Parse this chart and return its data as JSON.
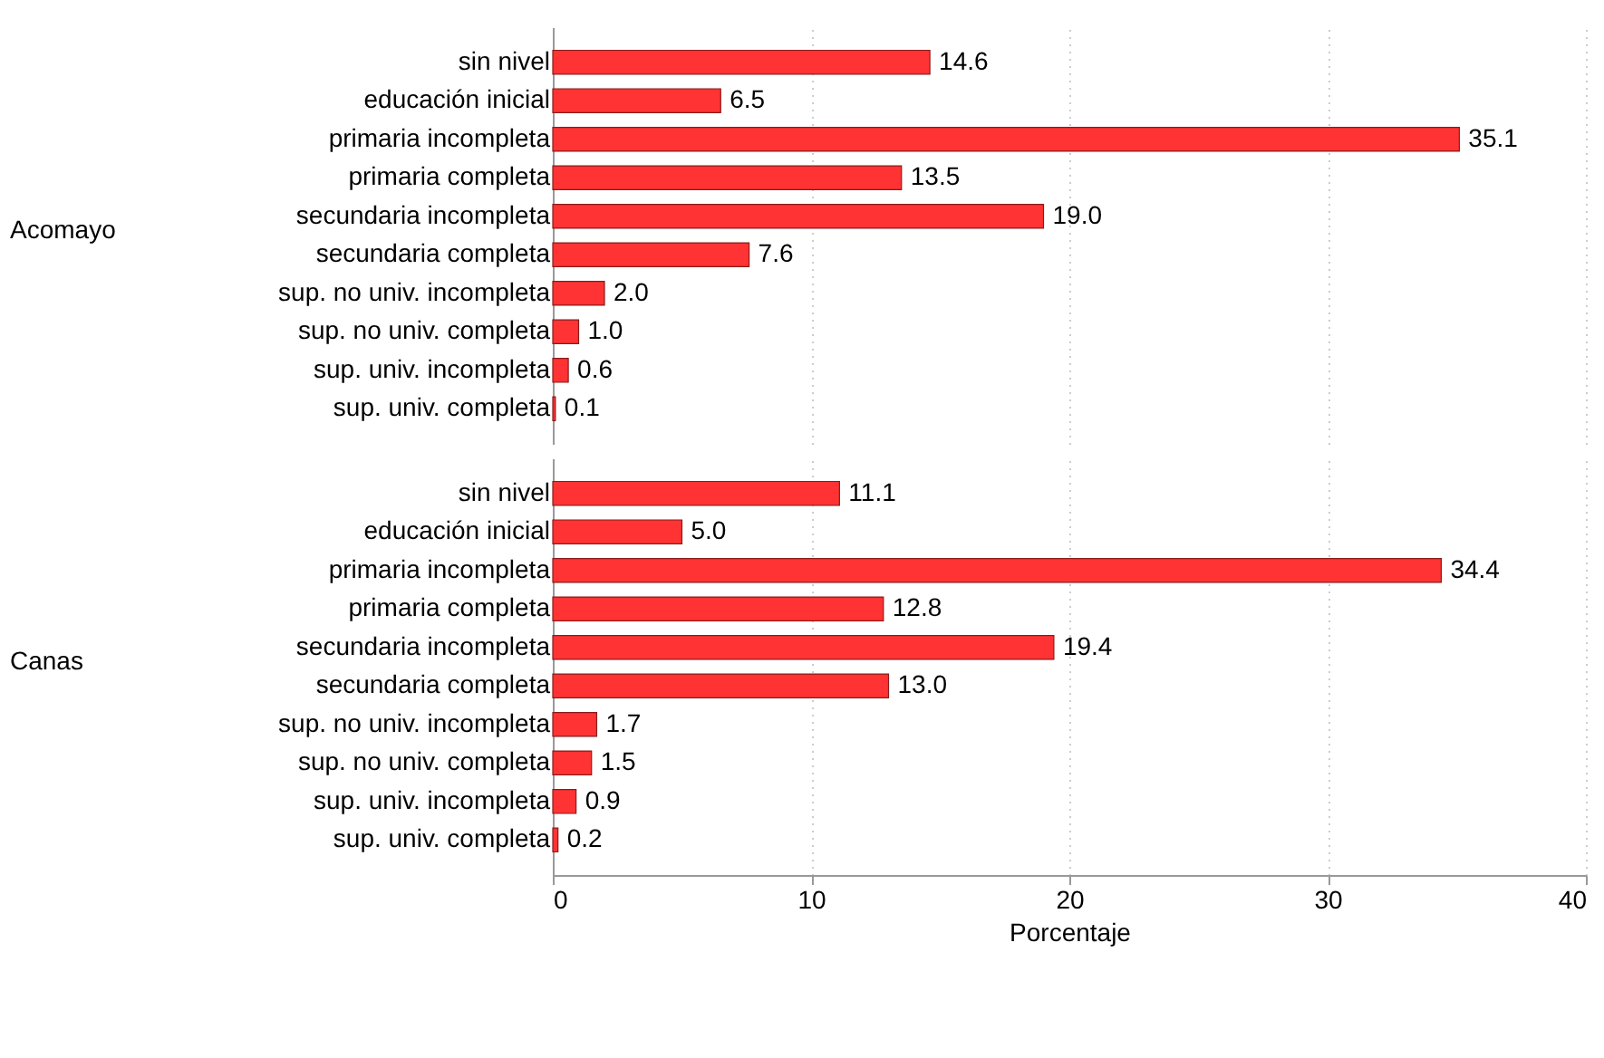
{
  "chart_data": [
    {
      "type": "bar",
      "orientation": "horizontal",
      "ylabel": "Acomayo",
      "categories": [
        "sin nivel",
        "educación inicial",
        "primaria incompleta",
        "primaria completa",
        "secundaria incompleta",
        "secundaria completa",
        "sup. no univ. incompleta",
        "sup. no univ. completa",
        "sup. univ. incompleta",
        "sup. univ. completa"
      ],
      "values": [
        14.6,
        6.5,
        35.1,
        13.5,
        19.0,
        7.6,
        2.0,
        1.0,
        0.6,
        0.1
      ],
      "value_labels": [
        "14.6",
        "6.5",
        "35.1",
        "13.5",
        "19.0",
        "7.6",
        "2.0",
        "1.0",
        "0.6",
        "0.1"
      ],
      "color": "#ff3333",
      "xlim": [
        0,
        40
      ],
      "xticks": [
        0,
        10,
        20,
        30,
        40
      ],
      "grid": "x",
      "tick_labels": "y"
    },
    {
      "type": "bar",
      "orientation": "horizontal",
      "ylabel": "Canas",
      "xlabel": "Porcentaje",
      "categories": [
        "sin nivel",
        "educación inicial",
        "primaria incompleta",
        "primaria completa",
        "secundaria incompleta",
        "secundaria completa",
        "sup. no univ. incompleta",
        "sup. no univ. completa",
        "sup. univ. incompleta",
        "sup. univ. completa"
      ],
      "values": [
        11.1,
        5.0,
        34.4,
        12.8,
        19.4,
        13.0,
        1.7,
        1.5,
        0.9,
        0.2
      ],
      "value_labels": [
        "11.1",
        "5.0",
        "34.4",
        "12.8",
        "19.4",
        "13.0",
        "1.7",
        "1.5",
        "0.9",
        "0.2"
      ],
      "color": "#ff3333",
      "xlim": [
        0,
        40
      ],
      "xticks": [
        0,
        10,
        20,
        30,
        40
      ],
      "grid": "x"
    }
  ]
}
